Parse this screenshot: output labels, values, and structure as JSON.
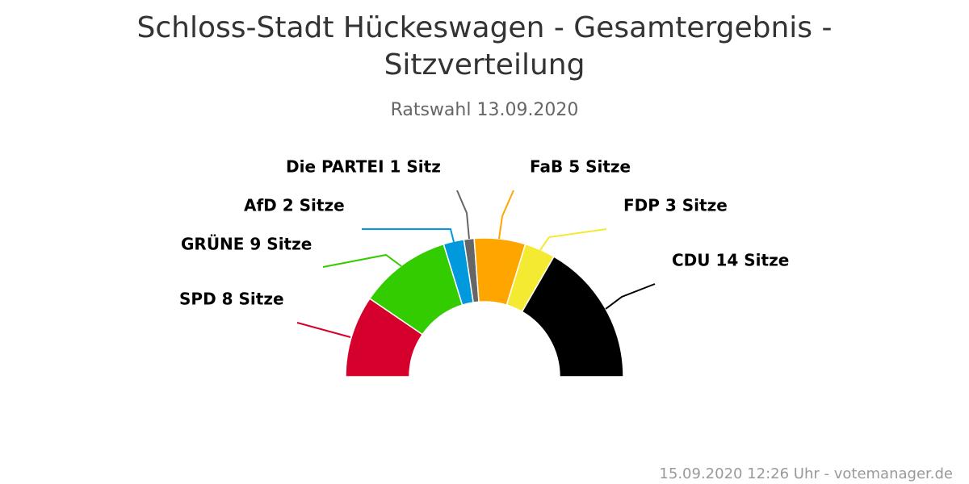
{
  "chart_data": {
    "type": "pie",
    "subtype": "semicircle-donut",
    "title": "Schloss-Stadt Hückeswagen - Gesamtergebnis - Sitzverteilung",
    "subtitle": "Ratswahl 13.09.2020",
    "categories": [
      "SPD",
      "GRÜNE",
      "AfD",
      "Die PARTEI",
      "FaB",
      "FDP",
      "CDU"
    ],
    "values": [
      8,
      9,
      2,
      1,
      5,
      3,
      14
    ],
    "labels": [
      "SPD 8 Sitze",
      "GRÜNE 9 Sitze",
      "AfD 2 Sitze",
      "Die PARTEI 1 Sitz",
      "FaB 5 Sitze",
      "FDP 3 Sitze",
      "CDU 14 Sitze"
    ],
    "colors": [
      "#d5002c",
      "#33cc00",
      "#0099dd",
      "#666666",
      "#ffa500",
      "#f5ea32",
      "#000000"
    ],
    "legend": "none"
  },
  "credits": "15.09.2020 12:26 Uhr - votemanager.de"
}
